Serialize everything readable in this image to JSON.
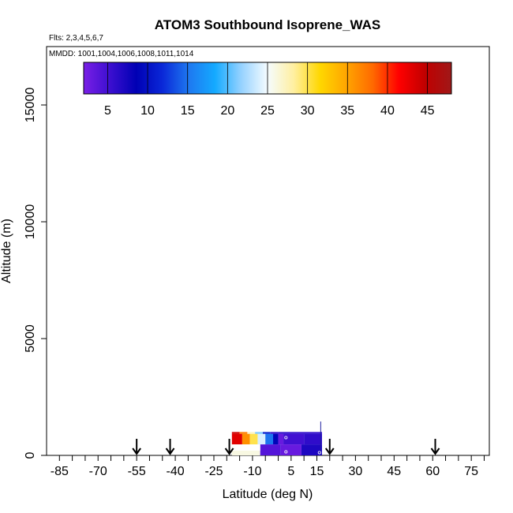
{
  "chart_data": {
    "type": "heatmap",
    "title": "ATOM3 Southbound Isoprene_WAS",
    "flights_label": "Flts: 2,3,4,5,6,7",
    "dates_label": "MMDD: 1001,1004,1006,1008,1011,1014",
    "xlabel": "Latitude (deg N)",
    "ylabel": "Altitude (m)",
    "xlim": [
      -90,
      82
    ],
    "ylim": [
      0,
      17500
    ],
    "x_ticks_labeled": [
      -85,
      -70,
      -55,
      -40,
      -25,
      -10,
      5,
      15,
      30,
      45,
      60,
      75
    ],
    "x_tick_labels": [
      "-85",
      "-70",
      "-55",
      "-40",
      "-25",
      "-10",
      "5",
      "15",
      "30",
      "45",
      "60",
      "75"
    ],
    "x_minor_ticks": [
      -80,
      -75,
      -65,
      -60,
      -50,
      -45,
      -35,
      -30,
      -20,
      -15,
      -5,
      0,
      10,
      20,
      25,
      35,
      40,
      50,
      55,
      65,
      70,
      80
    ],
    "y_ticks": [
      0,
      5000,
      10000,
      15000
    ],
    "y_tick_labels": [
      "0",
      "5000",
      "10000",
      "15000"
    ],
    "grid": false,
    "colorbar": {
      "placement": "top",
      "range": [
        2,
        48
      ],
      "ticks": [
        5,
        10,
        15,
        20,
        25,
        30,
        35,
        40,
        45
      ],
      "tick_labels": [
        "5",
        "10",
        "15",
        "20",
        "25",
        "30",
        "35",
        "40",
        "45"
      ],
      "colors": [
        "#7a1fe6",
        "#3c0fd0",
        "#0000b4",
        "#0a28d8",
        "#1e78f0",
        "#14aaff",
        "#96d2ff",
        "#f5fcff",
        "#ffefa0",
        "#ffd700",
        "#ffa500",
        "#ff6a00",
        "#ff0000",
        "#c00000",
        "#a01818"
      ]
    },
    "cells": [
      {
        "lat": [
          -18,
          -15
        ],
        "alt": [
          920,
          1000
        ],
        "value": 44
      },
      {
        "lat": [
          -15,
          -12
        ],
        "alt": [
          920,
          1000
        ],
        "value": 37
      },
      {
        "lat": [
          -12,
          -9
        ],
        "alt": [
          920,
          1000
        ],
        "value": 27
      },
      {
        "lat": [
          -9,
          -6
        ],
        "alt": [
          920,
          1000
        ],
        "value": 21
      },
      {
        "lat": [
          -6,
          -3
        ],
        "alt": [
          920,
          1000
        ],
        "value": 11
      },
      {
        "lat": [
          -3,
          0
        ],
        "alt": [
          920,
          1000
        ],
        "value": 6
      },
      {
        "lat": [
          0,
          17
        ],
        "alt": [
          920,
          1000
        ],
        "value": 6
      },
      {
        "lat": [
          -18,
          -14
        ],
        "alt": [
          470,
          920
        ],
        "value": 43
      },
      {
        "lat": [
          -14,
          -11
        ],
        "alt": [
          470,
          920
        ],
        "value": 36
      },
      {
        "lat": [
          -11,
          -8
        ],
        "alt": [
          470,
          920
        ],
        "value": 30
      },
      {
        "lat": [
          -8,
          -5
        ],
        "alt": [
          470,
          920
        ],
        "value": 24
      },
      {
        "lat": [
          -5,
          -2
        ],
        "alt": [
          470,
          920
        ],
        "value": 15
      },
      {
        "lat": [
          -2,
          0
        ],
        "alt": [
          470,
          920
        ],
        "value": 9
      },
      {
        "lat": [
          0,
          2
        ],
        "alt": [
          470,
          920
        ],
        "value": 3
      },
      {
        "lat": [
          2,
          10
        ],
        "alt": [
          470,
          920
        ],
        "value": 5
      },
      {
        "lat": [
          10,
          17
        ],
        "alt": [
          470,
          920
        ],
        "value": 6
      },
      {
        "lat": [
          -18,
          -7
        ],
        "alt": [
          0,
          470
        ],
        "value": 26
      },
      {
        "lat": [
          -7,
          1
        ],
        "alt": [
          0,
          470
        ],
        "value": 4
      },
      {
        "lat": [
          1,
          9
        ],
        "alt": [
          0,
          470
        ],
        "value": 3
      },
      {
        "lat": [
          9,
          17
        ],
        "alt": [
          0,
          470
        ],
        "value": 7
      }
    ],
    "sample_markers": [
      {
        "lat": 3,
        "alt": 760
      },
      {
        "lat": 3,
        "alt": 150
      },
      {
        "lat": 16,
        "alt": 120
      }
    ],
    "profile_tick": {
      "lat": 16.5,
      "alt": [
        0,
        1450
      ]
    },
    "arrow_latitudes": [
      -55,
      -42,
      -19,
      20,
      61
    ]
  }
}
